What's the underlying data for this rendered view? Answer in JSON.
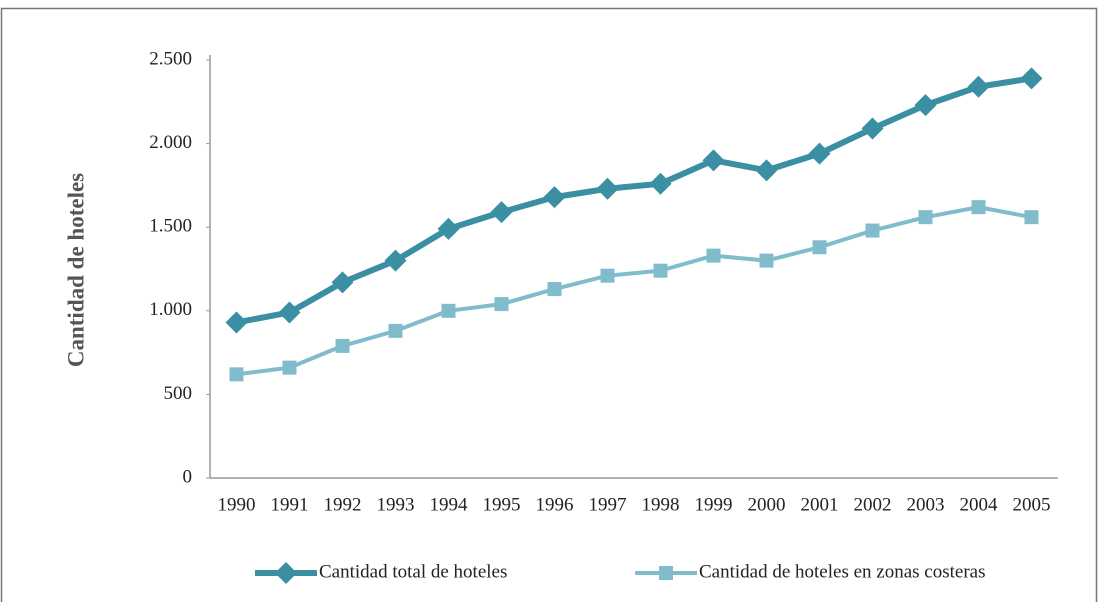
{
  "chart_data": {
    "type": "line",
    "y_label": "Cantidad de hoteles",
    "categories": [
      "1990",
      "1991",
      "1992",
      "1993",
      "1994",
      "1995",
      "1996",
      "1997",
      "1998",
      "1999",
      "2000",
      "2001",
      "2002",
      "2003",
      "2004",
      "2005"
    ],
    "series": [
      {
        "name": "Cantidad total de hoteles",
        "color": "#3a8fa3",
        "marker": "diamond",
        "values": [
          930,
          990,
          1170,
          1300,
          1490,
          1590,
          1680,
          1730,
          1760,
          1900,
          1840,
          1940,
          2090,
          2230,
          2340,
          2390
        ]
      },
      {
        "name": "Cantidad de hoteles en zonas costeras",
        "color": "#80bccb",
        "marker": "square",
        "values": [
          620,
          660,
          790,
          880,
          1000,
          1040,
          1130,
          1210,
          1240,
          1330,
          1300,
          1380,
          1480,
          1560,
          1620,
          1560
        ]
      }
    ],
    "ylim": [
      0,
      2500
    ],
    "yticks": [
      0,
      500,
      {
        "value": 1000,
        "label": "1.000"
      },
      {
        "value": 1500,
        "label": "1.500"
      },
      {
        "value": 2000,
        "label": "2.000"
      },
      {
        "value": 2500,
        "label": "2.500"
      }
    ],
    "grid": false,
    "legend": "bottom"
  }
}
